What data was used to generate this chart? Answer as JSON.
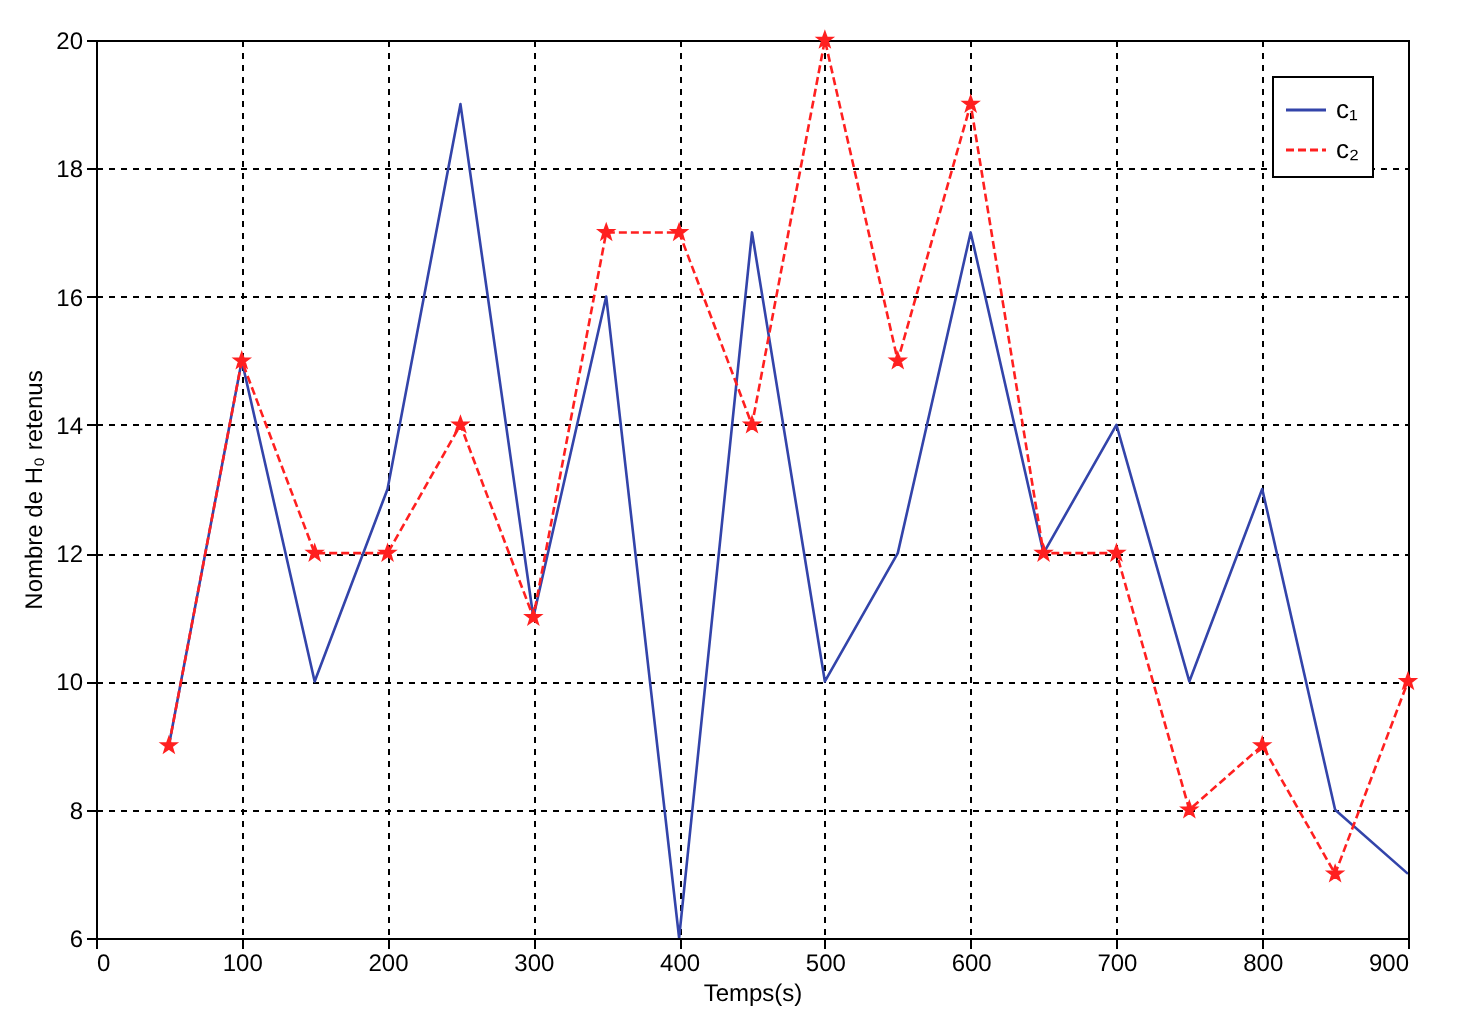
{
  "chart_data": {
    "type": "line",
    "xlabel": "Temps(s)",
    "ylabel": "Nombre de H₀ retenus",
    "x": [
      50,
      100,
      150,
      200,
      250,
      300,
      350,
      400,
      450,
      500,
      550,
      600,
      650,
      700,
      750,
      800,
      850,
      900
    ],
    "series": [
      {
        "name": "c₁",
        "color": "#3344aa",
        "marker": "none",
        "line_style": "solid",
        "values": [
          9,
          15,
          10,
          13,
          19,
          11,
          16,
          6,
          17,
          10,
          12,
          17,
          12,
          14,
          10,
          13,
          8,
          7
        ]
      },
      {
        "name": "c₂",
        "color": "#ff2020",
        "marker": "star",
        "line_style": "dashed",
        "values": [
          9,
          15,
          12,
          12,
          14,
          11,
          17,
          17,
          14,
          20,
          15,
          19,
          12,
          12,
          8,
          9,
          7,
          10
        ]
      }
    ],
    "xlim": [
      0,
      900
    ],
    "xticks": [
      0,
      100,
      200,
      300,
      400,
      500,
      600,
      700,
      800,
      900
    ],
    "ylim": [
      6,
      20
    ],
    "yticks": [
      6,
      8,
      10,
      12,
      14,
      16,
      18,
      20
    ],
    "grid": true,
    "legend": "top right"
  }
}
